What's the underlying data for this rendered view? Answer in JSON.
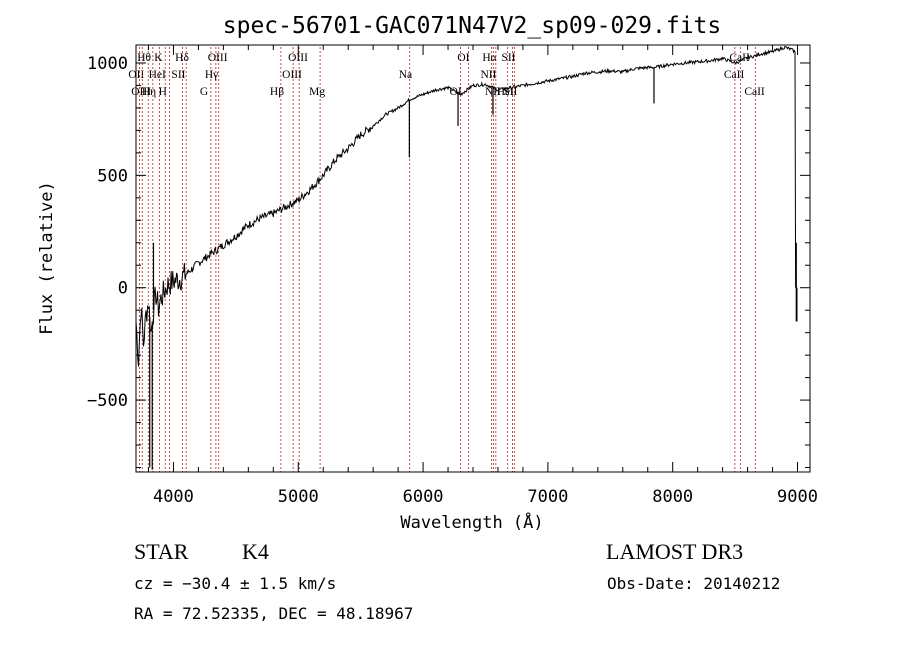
{
  "chart_data": {
    "type": "line",
    "title": "spec-56701-GAC071N47V2_sp09-029.fits",
    "xlabel": "Wavelength (Å)",
    "ylabel": "Flux (relative)",
    "xlim": [
      3700,
      9100
    ],
    "ylim": [
      -820,
      1080
    ],
    "xticks": [
      4000,
      5000,
      6000,
      7000,
      8000,
      9000
    ],
    "xtick_labels": [
      "4000",
      "5000",
      "6000",
      "7000",
      "8000",
      "9000"
    ],
    "yticks": [
      -500,
      0,
      500,
      1000
    ],
    "ytick_labels": [
      "−500",
      "0",
      "500",
      "1000"
    ],
    "series": [
      {
        "name": "flux",
        "x": [
          3700,
          3720,
          3740,
          3760,
          3780,
          3800,
          3820,
          3840,
          3860,
          3880,
          3900,
          3950,
          4000,
          4050,
          4100,
          4200,
          4300,
          4400,
          4500,
          4600,
          4700,
          4800,
          4900,
          5000,
          5100,
          5200,
          5300,
          5400,
          5500,
          5600,
          5700,
          5800,
          5900,
          6000,
          6100,
          6200,
          6300,
          6400,
          6500,
          6600,
          6700,
          6800,
          6900,
          7000,
          7100,
          7200,
          7300,
          7400,
          7500,
          7600,
          7700,
          7800,
          7850,
          7900,
          8000,
          8100,
          8200,
          8300,
          8400,
          8500,
          8550,
          8600,
          8650,
          8700,
          8750,
          8800,
          8850,
          8900,
          8950,
          8980
        ],
        "y": [
          -150,
          -320,
          -80,
          -250,
          -120,
          -60,
          -200,
          -100,
          -30,
          -90,
          -50,
          10,
          30,
          40,
          60,
          110,
          150,
          190,
          230,
          280,
          310,
          330,
          360,
          390,
          440,
          500,
          570,
          620,
          680,
          720,
          770,
          800,
          840,
          860,
          880,
          890,
          860,
          900,
          905,
          880,
          890,
          900,
          910,
          920,
          930,
          940,
          955,
          960,
          965,
          960,
          975,
          980,
          980,
          985,
          995,
          1000,
          1005,
          1010,
          1020,
          1000,
          1010,
          1025,
          1030,
          1040,
          1045,
          1050,
          1060,
          1070,
          1060,
          1050
        ]
      }
    ],
    "spikes": [
      {
        "x": 3840,
        "y": 200,
        "dir": "up"
      },
      {
        "x": 3810,
        "y": -800,
        "dir": "down"
      },
      {
        "x": 3830,
        "y": -810,
        "dir": "down"
      },
      {
        "x": 5890,
        "y": 580,
        "dir": "down"
      },
      {
        "x": 6280,
        "y": 720,
        "dir": "down"
      },
      {
        "x": 6560,
        "y": 770,
        "dir": "down"
      },
      {
        "x": 7850,
        "y": 820,
        "dir": "down"
      },
      {
        "x": 8990,
        "y": 200,
        "dir": "down"
      },
      {
        "x": 8995,
        "y": 0,
        "dir": "down"
      }
    ],
    "lines": [
      {
        "x": 3727,
        "label": "OII",
        "row": 2
      },
      {
        "x": 3750,
        "label": "OIII",
        "row": 3
      },
      {
        "x": 3798,
        "label": "Hθ",
        "row": 1
      },
      {
        "x": 3835,
        "label": "Hη",
        "row": 3
      },
      {
        "x": 3889,
        "label": "HeI",
        "row": 2
      },
      {
        "x": 3934,
        "label": "K",
        "row": 1
      },
      {
        "x": 3969,
        "label": "H",
        "row": 3
      },
      {
        "x": 4072,
        "label": "SII",
        "row": 2
      },
      {
        "x": 4102,
        "label": "Hδ",
        "row": 1
      },
      {
        "x": 4300,
        "label": "G",
        "row": 3
      },
      {
        "x": 4340,
        "label": "Hγ",
        "row": 2
      },
      {
        "x": 4363,
        "label": "OIII",
        "row": 1
      },
      {
        "x": 4861,
        "label": "Hβ",
        "row": 3
      },
      {
        "x": 4959,
        "label": "OIII",
        "row": 2
      },
      {
        "x": 5007,
        "label": "OIII",
        "row": 1
      },
      {
        "x": 5175,
        "label": "Mg",
        "row": 3
      },
      {
        "x": 5893,
        "label": "Na",
        "row": 2
      },
      {
        "x": 6300,
        "label": "OI",
        "row": 3
      },
      {
        "x": 6363,
        "label": "OI",
        "row": 1
      },
      {
        "x": 6548,
        "label": "NII",
        "row": 2
      },
      {
        "x": 6563,
        "label": "Hα",
        "row": 1
      },
      {
        "x": 6583,
        "label": "NII",
        "row": 3
      },
      {
        "x": 6678,
        "label": "HeI",
        "row": 3
      },
      {
        "x": 6716,
        "label": "SII",
        "row": 1
      },
      {
        "x": 6731,
        "label": "SII",
        "row": 3
      },
      {
        "x": 8498,
        "label": "CaII",
        "row": 2
      },
      {
        "x": 8542,
        "label": "CaII",
        "row": 1
      },
      {
        "x": 8662,
        "label": "CaII",
        "row": 3
      }
    ],
    "line_color": "#b22222"
  },
  "info": {
    "object_type": "STAR",
    "subclass": "K4",
    "survey": "LAMOST DR3",
    "cz": "cz = −30.4 ± 1.5 km/s",
    "obs_date": "Obs-Date: 20140212",
    "coords": "RA =  72.52335, DEC =  48.18967"
  }
}
